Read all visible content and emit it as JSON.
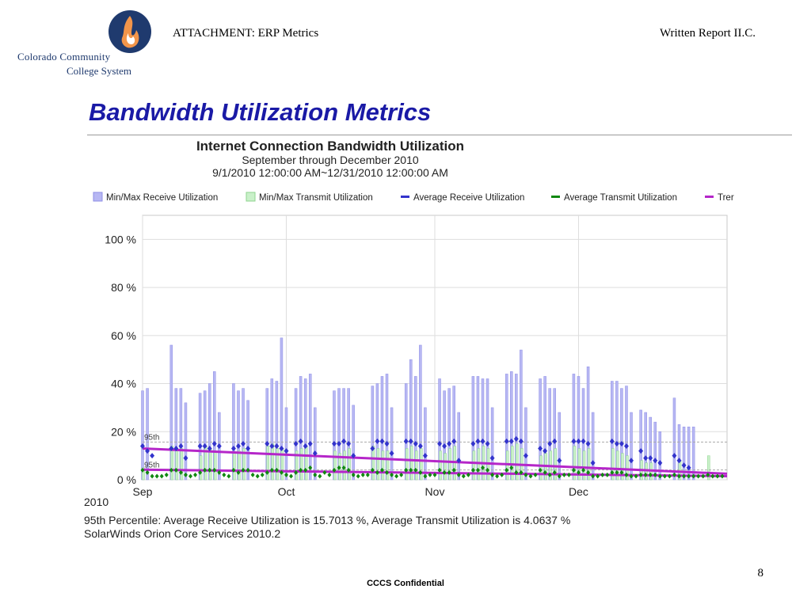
{
  "logo": {
    "line1": "Colorado Community",
    "line2": "College System"
  },
  "header": {
    "left": "ATTACHMENT: ERP Metrics",
    "right": "Written Report II.C."
  },
  "slide_title": "Bandwidth Utilization Metrics",
  "footer": {
    "confidential": "CCCS Confidential",
    "page_number": "8"
  },
  "colors": {
    "receive_bar": "#b7b7f3",
    "receive_bar_stroke": "#8f8fe6",
    "transmit_bar": "#c9f0c9",
    "transmit_bar_stroke": "#8fd48f",
    "avg_receive": "#3333cc",
    "avg_transmit": "#118811",
    "trend": "#b526c9",
    "grid": "#dddddd",
    "percentile_line": "#aaaaaa",
    "title_blue": "#1a1aa6"
  },
  "chart_data": {
    "type": "bar",
    "title": "Internet Connection Bandwidth Utilization",
    "subtitle": "September through December 2010",
    "date_range": "9/1/2010 12:00:00 AM~12/31/2010 12:00:00 AM",
    "legend": [
      {
        "label": "Min/Max Receive Utilization",
        "kind": "box-blue"
      },
      {
        "label": "Min/Max Transmit Utilization",
        "kind": "box-green"
      },
      {
        "label": "Average Receive Utilization",
        "kind": "line-blue"
      },
      {
        "label": "Average Transmit Utilization",
        "kind": "line-green"
      },
      {
        "label": "Trer",
        "kind": "line-purple"
      }
    ],
    "ylim": [
      0,
      110
    ],
    "yticks": [
      {
        "value": 0,
        "label": "0 %"
      },
      {
        "value": 20,
        "label": "20 %"
      },
      {
        "value": 40,
        "label": "40 %"
      },
      {
        "value": 60,
        "label": "60 %"
      },
      {
        "value": 80,
        "label": "80 %"
      },
      {
        "value": 100,
        "label": "100 %"
      }
    ],
    "xlim": [
      0,
      122
    ],
    "xticks": [
      {
        "day": 0,
        "label": "Sep"
      },
      {
        "day": 30,
        "label": "Oct"
      },
      {
        "day": 61,
        "label": "Nov"
      },
      {
        "day": 91,
        "label": "Dec"
      }
    ],
    "year_label": "2010",
    "percentile_labels": [
      "95th",
      "95th"
    ],
    "percentile": {
      "receive": 15.7013,
      "transmit": 4.0637
    },
    "trend": {
      "receive": {
        "start": 13,
        "end": 2.5
      },
      "transmit": {
        "start": 4.2,
        "end": 1.5
      }
    },
    "series": [
      {
        "name": "Max Receive Utilization",
        "x": [
          0,
          1,
          6,
          7,
          8,
          9,
          12,
          13,
          14,
          15,
          16,
          19,
          20,
          21,
          22,
          26,
          27,
          28,
          29,
          30,
          32,
          33,
          34,
          35,
          36,
          40,
          41,
          42,
          43,
          44,
          48,
          49,
          50,
          51,
          52,
          55,
          56,
          57,
          58,
          59,
          62,
          63,
          64,
          65,
          66,
          69,
          70,
          71,
          72,
          73,
          76,
          77,
          78,
          79,
          80,
          83,
          84,
          85,
          86,
          87,
          90,
          91,
          92,
          93,
          94,
          98,
          99,
          100,
          101,
          102,
          104,
          105,
          106,
          107,
          108,
          111,
          112,
          113,
          114,
          115
        ],
        "values": [
          37,
          38,
          56,
          38,
          38,
          32,
          36,
          37,
          40,
          45,
          28,
          40,
          37,
          38,
          33,
          38,
          42,
          41,
          59,
          30,
          38,
          43,
          42,
          44,
          30,
          37,
          38,
          38,
          38,
          31,
          39,
          40,
          43,
          44,
          30,
          40,
          50,
          43,
          56,
          30,
          42,
          37,
          38,
          39,
          28,
          43,
          43,
          42,
          42,
          30,
          44,
          45,
          44,
          54,
          30,
          42,
          43,
          38,
          38,
          28,
          44,
          43,
          38,
          47,
          28,
          41,
          41,
          38,
          39,
          28,
          29,
          28,
          26,
          24,
          20,
          34,
          23,
          22,
          22,
          22
        ]
      },
      {
        "name": "Max Transmit Utilization",
        "x": [
          0,
          6,
          7,
          8,
          12,
          13,
          14,
          15,
          19,
          20,
          21,
          26,
          27,
          28,
          29,
          32,
          33,
          34,
          40,
          41,
          42,
          43,
          48,
          49,
          50,
          51,
          55,
          56,
          57,
          58,
          62,
          63,
          64,
          65,
          69,
          70,
          71,
          72,
          76,
          77,
          78,
          79,
          83,
          84,
          85,
          86,
          90,
          91,
          92,
          93,
          98,
          99,
          100,
          101,
          104,
          105,
          106,
          112,
          118
        ],
        "values": [
          5,
          14,
          12,
          13,
          10,
          14,
          13,
          12,
          11,
          12,
          13,
          14,
          15,
          13,
          13,
          12,
          13,
          14,
          12,
          11,
          12,
          13,
          14,
          13,
          12,
          12,
          13,
          14,
          12,
          13,
          12,
          11,
          13,
          14,
          12,
          13,
          14,
          13,
          12,
          14,
          15,
          13,
          10,
          11,
          12,
          13,
          14,
          13,
          12,
          13,
          13,
          12,
          11,
          10,
          8,
          7,
          7,
          8,
          10
        ]
      },
      {
        "name": "Average Receive Utilization",
        "x": [
          0,
          1,
          2,
          6,
          7,
          8,
          9,
          12,
          13,
          14,
          15,
          16,
          19,
          20,
          21,
          22,
          26,
          27,
          28,
          29,
          30,
          32,
          33,
          34,
          35,
          36,
          40,
          41,
          42,
          43,
          44,
          48,
          49,
          50,
          51,
          52,
          55,
          56,
          57,
          58,
          59,
          62,
          63,
          64,
          65,
          66,
          69,
          70,
          71,
          72,
          73,
          76,
          77,
          78,
          79,
          80,
          83,
          84,
          85,
          86,
          87,
          90,
          91,
          92,
          93,
          94,
          98,
          99,
          100,
          101,
          102,
          104,
          105,
          106,
          107,
          108,
          111,
          112,
          113,
          114
        ],
        "values": [
          14,
          12,
          10,
          13,
          13,
          14,
          9,
          14,
          14,
          13,
          15,
          14,
          13,
          14,
          15,
          13,
          15,
          14,
          14,
          13,
          12,
          15,
          16,
          14,
          15,
          11,
          15,
          15,
          16,
          15,
          10,
          13,
          16,
          16,
          15,
          11,
          16,
          16,
          15,
          14,
          10,
          15,
          14,
          15,
          16,
          8,
          15,
          16,
          16,
          15,
          9,
          16,
          16,
          17,
          16,
          10,
          13,
          12,
          15,
          16,
          8,
          16,
          16,
          16,
          15,
          7,
          16,
          15,
          15,
          14,
          8,
          12,
          9,
          9,
          8,
          7,
          10,
          8,
          6,
          5
        ]
      },
      {
        "name": "Average Transmit Utilization",
        "x": [
          0,
          1,
          2,
          3,
          4,
          5,
          6,
          7,
          8,
          9,
          10,
          11,
          12,
          13,
          14,
          15,
          16,
          17,
          18,
          19,
          20,
          21,
          22,
          23,
          24,
          25,
          26,
          27,
          28,
          29,
          30,
          31,
          32,
          33,
          34,
          35,
          36,
          37,
          38,
          39,
          40,
          41,
          42,
          43,
          44,
          45,
          46,
          47,
          48,
          49,
          50,
          51,
          52,
          53,
          54,
          55,
          56,
          57,
          58,
          59,
          60,
          61,
          62,
          63,
          64,
          65,
          66,
          67,
          68,
          69,
          70,
          71,
          72,
          73,
          74,
          75,
          76,
          77,
          78,
          79,
          80,
          81,
          82,
          83,
          84,
          85,
          86,
          87,
          88,
          89,
          90,
          91,
          92,
          93,
          94,
          95,
          96,
          97,
          98,
          99,
          100,
          101,
          102,
          103,
          104,
          105,
          106,
          107,
          108,
          109,
          110,
          111,
          112,
          113,
          114,
          115,
          116,
          117,
          118,
          119,
          120,
          121
        ],
        "values": [
          4,
          3,
          1.5,
          1.5,
          1.5,
          2,
          4,
          4,
          3,
          2,
          1.5,
          2,
          3,
          4,
          4,
          4,
          3,
          2,
          1.5,
          4,
          3,
          4,
          4,
          2,
          1.5,
          2,
          3,
          4,
          4,
          3,
          2,
          1.5,
          3,
          4,
          4,
          5,
          2,
          1.5,
          3,
          2,
          4,
          5,
          5,
          4,
          2,
          1.5,
          2,
          2,
          4,
          3,
          4,
          3,
          2,
          1.5,
          2,
          4,
          4,
          4,
          3,
          1.5,
          2,
          2,
          4,
          3,
          3,
          4,
          2,
          1.5,
          2,
          4,
          4,
          5,
          4,
          2,
          1.5,
          2,
          4,
          5,
          3,
          3,
          2,
          1.5,
          2,
          4,
          3,
          2,
          3,
          1.5,
          2,
          2,
          4,
          3,
          4,
          3,
          1.5,
          1.5,
          2,
          2,
          3,
          3,
          3,
          2,
          1.5,
          1.5,
          2,
          2,
          2,
          2,
          1.5,
          1.5,
          1.5,
          2,
          1.5,
          1.5,
          1.5,
          1.5,
          1.5,
          1.5,
          2,
          1.5,
          1.5,
          1.5
        ]
      }
    ],
    "footnotes": {
      "percentile_text": "95th Percentile: Average Receive Utilization is 15.7013 %, Average Transmit Utilization is 4.0637 %",
      "credit": "SolarWinds Orion Core Services 2010.2"
    }
  }
}
